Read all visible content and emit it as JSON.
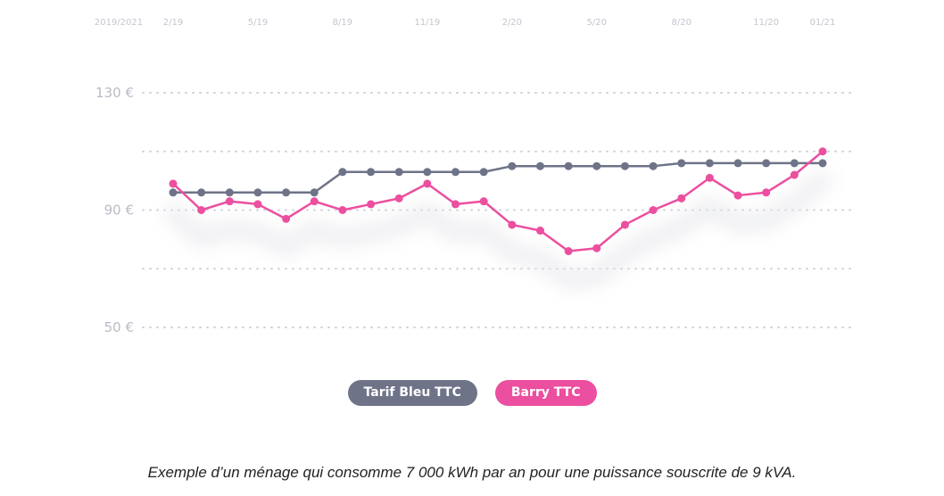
{
  "chart_data": {
    "type": "line",
    "period_label": "2019/2021",
    "x_tick_labels": [
      "2/19",
      "5/19",
      "8/19",
      "11/19",
      "2/20",
      "5/20",
      "8/20",
      "11/20",
      "01/21"
    ],
    "y_tick_labels": [
      "130 €",
      "90 €",
      "50 €"
    ],
    "ylim": [
      50,
      130
    ],
    "grid": "dotted horizontal",
    "legend_placement": "bottom-center",
    "series": [
      {
        "name": "Tarif Bleu TTC",
        "color": "#6e7388",
        "values": [
          96,
          96,
          96,
          96,
          96,
          96,
          103,
          103,
          103,
          103,
          103,
          103,
          105,
          105,
          105,
          105,
          105,
          105,
          106,
          106,
          106,
          106,
          106,
          106
        ]
      },
      {
        "name": "Barry TTC",
        "color": "#ec4f9f",
        "values": [
          99,
          90,
          93,
          92,
          87,
          93,
          90,
          92,
          94,
          99,
          92,
          93,
          85,
          83,
          76,
          77,
          85,
          90,
          94,
          101,
          95,
          96,
          102,
          110
        ]
      }
    ]
  },
  "caption": "Exemple d’un ménage qui consomme 7 000 kWh par an pour une puissance souscrite de 9 kVA."
}
